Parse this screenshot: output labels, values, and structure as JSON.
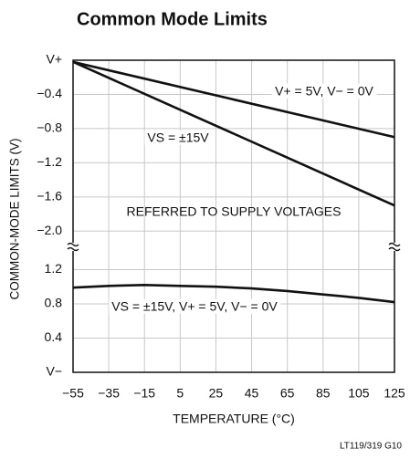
{
  "title": "Common Mode Limits",
  "ylabel": "COMMON-MODE LIMITS (V)",
  "xlabel": "TEMPERATURE (°C)",
  "note": "LT119/319 G10",
  "chart_data": [
    {
      "type": "line",
      "x": [
        -55,
        125
      ],
      "xlim": [
        -55,
        125
      ],
      "xticks": [
        {
          "value": -55,
          "label": "−55"
        },
        {
          "value": -35,
          "label": "−35"
        },
        {
          "value": -15,
          "label": "−15"
        },
        5,
        25,
        45,
        65,
        85,
        105,
        125
      ],
      "ylim": [
        -2.2,
        0
      ],
      "yticks": [
        {
          "value": 0,
          "label": "V+"
        },
        {
          "value": -0.4,
          "label": "−0.4"
        },
        {
          "value": -0.8,
          "label": "−0.8"
        },
        {
          "value": -1.2,
          "label": "−1.2"
        },
        {
          "value": -1.6,
          "label": "−1.6"
        },
        {
          "value": -2.0,
          "label": "−2.0"
        }
      ],
      "grid": true,
      "annotation": "REFERRED TO SUPPLY VOLTAGES",
      "series": [
        {
          "name": "V+ = 5V, V− = 0V",
          "color": "#111111",
          "values": [
            -0.02,
            -0.9
          ]
        },
        {
          "name": "VS = ±15V",
          "color": "#111111",
          "values": [
            -0.02,
            -1.7
          ]
        }
      ]
    },
    {
      "type": "line",
      "x": [
        -55,
        -35,
        -15,
        5,
        25,
        45,
        65,
        85,
        105,
        125
      ],
      "xlim": [
        -55,
        125
      ],
      "xticks": [
        {
          "value": -55,
          "label": "−55"
        },
        {
          "value": -35,
          "label": "−35"
        },
        {
          "value": -15,
          "label": "−15"
        },
        5,
        25,
        45,
        65,
        85,
        105,
        125
      ],
      "ylim": [
        0,
        1.45
      ],
      "yticks": [
        {
          "value": 0,
          "label": "V−"
        },
        0.4,
        0.8,
        1.2
      ],
      "grid": true,
      "series": [
        {
          "name": "VS = ±15V, V+ = 5V, V− = 0V",
          "color": "#111111",
          "values": [
            0.99,
            1.01,
            1.02,
            1.01,
            1.0,
            0.98,
            0.95,
            0.91,
            0.87,
            0.82
          ]
        }
      ]
    }
  ]
}
